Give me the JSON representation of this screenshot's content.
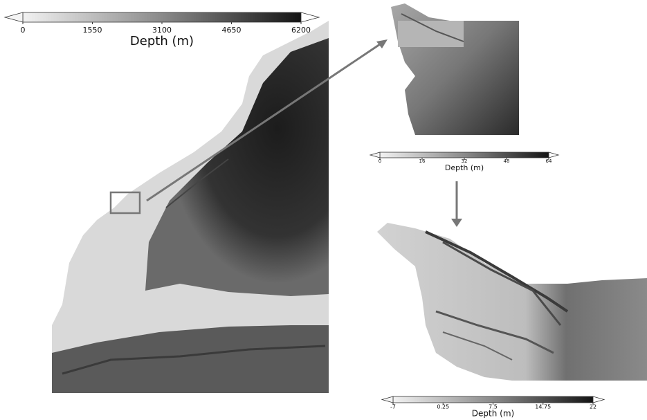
{
  "colorbars": [
    {
      "ticks": [
        0,
        1550,
        3100,
        4650,
        6200
      ],
      "label": "Depth (m)"
    },
    {
      "ticks": [
        0,
        16,
        32,
        48,
        64
      ],
      "label": "Depth (m)"
    },
    {
      "ticks": [
        -7,
        0.25,
        7.5,
        14.75,
        22
      ],
      "label": "Depth (m)"
    }
  ]
}
